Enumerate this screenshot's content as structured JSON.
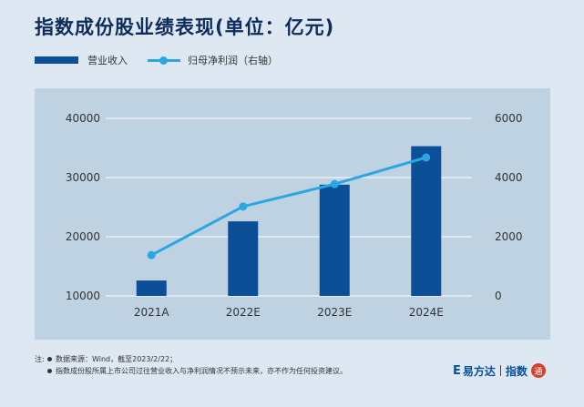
{
  "title": "指数成份股业绩表现(单位：亿元)",
  "legend": {
    "revenue": "营业收入",
    "profit": "归母净利润（右轴）"
  },
  "colors": {
    "bar": "#0a4f97",
    "line": "#2aa6e3",
    "plot_bg": "#bfd2e2",
    "grid": "#ffffff"
  },
  "chart_data": {
    "type": "bar",
    "title": "指数成份股业绩表现(单位：亿元)",
    "categories": [
      "2021A",
      "2022E",
      "2023E",
      "2024E"
    ],
    "left_axis": {
      "min": 10000,
      "max": 40000,
      "ticks": [
        "10000",
        "20000",
        "30000",
        "40000"
      ]
    },
    "right_axis": {
      "min": 0,
      "max": 6000,
      "ticks": [
        "0",
        "2000",
        "4000",
        "6000"
      ]
    },
    "series": [
      {
        "name": "营业收入",
        "type": "bar",
        "axis": "left",
        "values": [
          12600,
          22600,
          28800,
          35300
        ]
      },
      {
        "name": "归母净利润（右轴）",
        "type": "line",
        "axis": "right",
        "values": [
          1380,
          3020,
          3780,
          4680
        ]
      }
    ],
    "grid": true
  },
  "notes": {
    "prefix": "注:",
    "lines": [
      "数据来源：Wind，截至2023/2/22；",
      "指数成份股所属上市公司过往营业收入与净利润情况不预示未来，亦不作为任何投资建议。"
    ]
  },
  "brand": {
    "e_mark": "E",
    "name": "易方达",
    "sub": "指数",
    "seal": "通"
  }
}
